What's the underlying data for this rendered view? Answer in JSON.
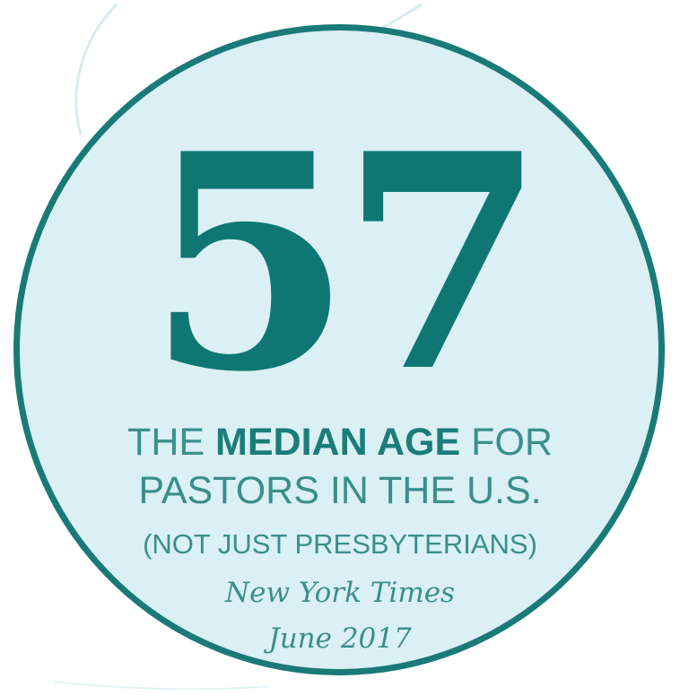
{
  "badge": {
    "stat": "57",
    "caption_line1": {
      "pre": "THE ",
      "strong": "MEDIAN AGE",
      "post": " FOR"
    },
    "caption_line2": "PASTORS IN THE U.S.",
    "caption_line3": "(NOT JUST PRESBYTERIANS)",
    "source_name": "New York Times",
    "source_date": "June 2017"
  },
  "colors": {
    "circle_fill": "#daf0f4",
    "circle_border": "#1a7a78",
    "stat_color": "#0f7773",
    "text_color": "#3a8f8b",
    "decor_line": "#d5ecf1"
  }
}
